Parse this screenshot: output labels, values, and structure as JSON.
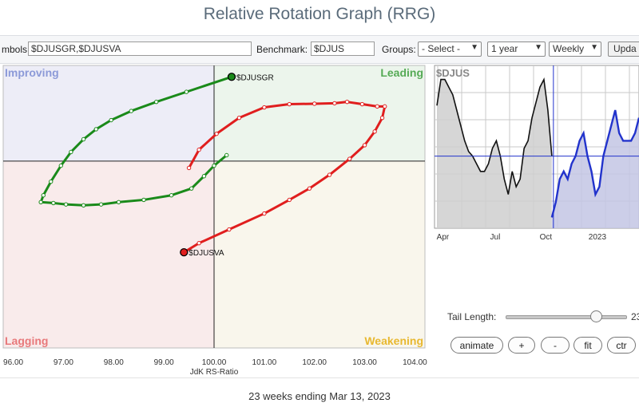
{
  "page": {
    "title": "Relative Rotation Graph (RRG)",
    "footer": "23 weeks ending Mar 13, 2023"
  },
  "toolbar": {
    "symbols_label": "mbols:",
    "symbols_value": "$DJUSGR,$DJUSVA",
    "benchmark_label": "Benchmark:",
    "benchmark_value": "$DJUS",
    "groups_label": "Groups:",
    "groups_selected": "- Select -",
    "period_selected": "1 year",
    "frequency_selected": "Weekly",
    "update_label": "Upda"
  },
  "controls": {
    "tail_length_label": "Tail Length:",
    "tail_length_value": "23",
    "buttons": [
      "animate",
      "+",
      "-",
      "fit",
      "ctr"
    ]
  },
  "colors": {
    "green": "#1a8a1a",
    "red": "#e01e1e",
    "blue": "#2233cc",
    "grid": "#c9c9c9"
  },
  "chart_data": [
    {
      "type": "scatter",
      "title": "",
      "xlabel": "JdK RS-Ratio",
      "ylabel": "",
      "xlim": [
        95.8,
        104.2
      ],
      "ylim": [
        95.9,
        102.1
      ],
      "x_ticks": [
        "96.00",
        "97.00",
        "98.00",
        "99.00",
        "100.00",
        "101.00",
        "102.00",
        "103.00",
        "104.00"
      ],
      "center": [
        100,
        100
      ],
      "quadrants": {
        "top_left": "Improving",
        "top_right": "Leading",
        "bottom_left": "Lagging",
        "bottom_right": "Weakening"
      },
      "series": [
        {
          "name": "$DJUSGR",
          "color": "#1a8a1a",
          "points": [
            [
              100.25,
              100.13
            ],
            [
              100.0,
              99.9
            ],
            [
              99.8,
              99.67
            ],
            [
              99.55,
              99.4
            ],
            [
              99.15,
              99.25
            ],
            [
              98.6,
              99.15
            ],
            [
              98.1,
              99.1
            ],
            [
              97.75,
              99.05
            ],
            [
              97.4,
              99.03
            ],
            [
              97.05,
              99.05
            ],
            [
              96.8,
              99.08
            ],
            [
              96.55,
              99.1
            ],
            [
              96.6,
              99.25
            ],
            [
              96.75,
              99.55
            ],
            [
              96.95,
              99.9
            ],
            [
              97.15,
              100.2
            ],
            [
              97.4,
              100.48
            ],
            [
              97.65,
              100.7
            ],
            [
              97.95,
              100.9
            ],
            [
              98.35,
              101.1
            ],
            [
              98.85,
              101.3
            ],
            [
              99.45,
              101.52
            ],
            [
              100.35,
              101.85
            ]
          ]
        },
        {
          "name": "$DJUSVA",
          "color": "#e01e1e",
          "points": [
            [
              99.5,
              99.85
            ],
            [
              99.7,
              100.25
            ],
            [
              100.05,
              100.6
            ],
            [
              100.5,
              100.95
            ],
            [
              101.0,
              101.18
            ],
            [
              101.5,
              101.25
            ],
            [
              102.0,
              101.26
            ],
            [
              102.4,
              101.27
            ],
            [
              102.65,
              101.3
            ],
            [
              102.95,
              101.25
            ],
            [
              103.25,
              101.2
            ],
            [
              103.4,
              101.2
            ],
            [
              103.35,
              100.95
            ],
            [
              103.2,
              100.65
            ],
            [
              103.0,
              100.35
            ],
            [
              102.7,
              100.05
            ],
            [
              102.3,
              99.7
            ],
            [
              101.9,
              99.4
            ],
            [
              101.5,
              99.15
            ],
            [
              101.0,
              98.85
            ],
            [
              100.3,
              98.5
            ],
            [
              99.7,
              98.2
            ],
            [
              99.4,
              98.0
            ]
          ]
        }
      ]
    },
    {
      "type": "line",
      "title": "$DJUS",
      "x_ticks": [
        "Apr",
        "Jul",
        "Oct",
        "2023"
      ],
      "x_tick_index": [
        1.5,
        14.7,
        27.5,
        40.5
      ],
      "ylim": [
        0,
        100
      ],
      "cursor_index": 29.4,
      "cursor_value": 45,
      "series": [
        {
          "name": "",
          "color": "#111111",
          "values": [
            78,
            95,
            95,
            90,
            85,
            75,
            65,
            55,
            48,
            45,
            40,
            35,
            35,
            40,
            50,
            55,
            45,
            30,
            20,
            35,
            25,
            30,
            50,
            55,
            70,
            80,
            90,
            95,
            75,
            45
          ]
        },
        {
          "name": "",
          "color": "#2233cc",
          "values": [
            null,
            null,
            null,
            null,
            null,
            null,
            null,
            null,
            null,
            null,
            null,
            null,
            null,
            null,
            null,
            null,
            null,
            null,
            null,
            null,
            null,
            null,
            null,
            null,
            null,
            null,
            null,
            null,
            null,
            5,
            15,
            30,
            35,
            30,
            40,
            45,
            55,
            60,
            45,
            35,
            20,
            25,
            45,
            55,
            65,
            75,
            60,
            55,
            55,
            55,
            60,
            70
          ]
        }
      ]
    }
  ]
}
